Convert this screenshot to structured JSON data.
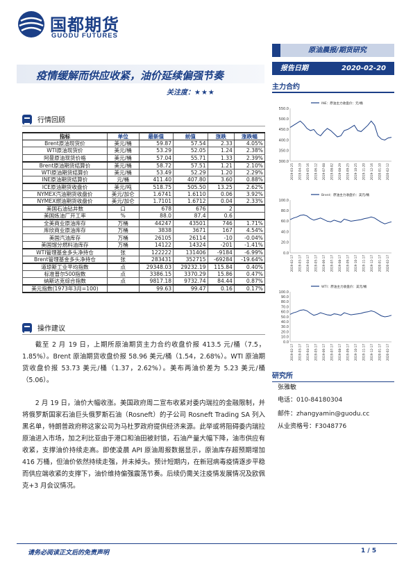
{
  "header": {
    "logo_cn": "国都期货",
    "logo_en": "GUODU FUTURES",
    "report_type": "原油晨报/期货研究",
    "date_label": "报告日期",
    "date_value": "2020-02-20",
    "title": "疫情缓解而供应收紧，油价延续偏强节奏",
    "attention_label": "关注度：",
    "attention_stars": "★★★",
    "section_main": "主力合约"
  },
  "sections": {
    "market": "行情回顾",
    "advice": "操作建议"
  },
  "table": {
    "headers": [
      "指标",
      "单位",
      "最新值",
      "前值",
      "涨跌",
      "涨跌幅"
    ],
    "rows": [
      [
        "Brent原油现货价",
        "美元/桶",
        "59.87",
        "57.54",
        "2.33",
        "4.05%"
      ],
      [
        "WTI原油现货价",
        "美元/桶",
        "53.29",
        "52.05",
        "1.24",
        "2.38%"
      ],
      [
        "阿曼原油现货价格",
        "美元/桶",
        "57.04",
        "55.71",
        "1.33",
        "2.39%"
      ],
      [
        "Brent原油期货结算价",
        "美元/桶",
        "58.72",
        "57.51",
        "1.21",
        "2.10%"
      ],
      [
        "WTI原油期货结算价",
        "美元/桶",
        "53.49",
        "52.29",
        "1.20",
        "2.29%"
      ],
      [
        "INE原油期货结算价",
        "元/桶",
        "411.40",
        "407.80",
        "3.60",
        "0.88%"
      ],
      [
        "ICE原油期货收盘价",
        "美元/吨",
        "518.75",
        "505.50",
        "13.25",
        "2.62%"
      ],
      [
        "NYMEX汽油期货收盘价",
        "美元/加仑",
        "1.6741",
        "1.6110",
        "0.06",
        "3.92%"
      ],
      [
        "NYMEX燃油期货收盘价",
        "美元/加仑",
        "1.7101",
        "1.6712",
        "0.04",
        "2.33%"
      ],
      [
        "美国石油钻井数",
        "口",
        "678",
        "676",
        "2",
        ""
      ],
      [
        "美国炼油厂开工率",
        "%",
        "88.0",
        "87.4",
        "0.6",
        ""
      ],
      [
        "全美商业原油库存",
        "万桶",
        "44247",
        "43501",
        "746",
        "1.71%"
      ],
      [
        "库欣商业原油库存",
        "万桶",
        "3838",
        "3671",
        "167",
        "4.54%"
      ],
      [
        "美国汽油库存",
        "万桶",
        "26105",
        "26114",
        "-10",
        "-0.04%"
      ],
      [
        "美国馏分燃料油库存",
        "万桶",
        "14122",
        "14324",
        "-201",
        "-1.41%"
      ],
      [
        "WTI管理基金多头净持仓",
        "张",
        "122222",
        "131406",
        "-9184",
        "-6.99%"
      ],
      [
        "Brent管理基金多头净持仓",
        "张",
        "283431",
        "352715",
        "-69284",
        "-19.64%"
      ],
      [
        "道琼斯工业平均指数",
        "点",
        "29348.03",
        "29232.19",
        "115.84",
        "0.40%"
      ],
      [
        "标准普尔500指数",
        "点",
        "3386.15",
        "3370.29",
        "15.86",
        "0.47%"
      ],
      [
        "纳斯达克综合指数",
        "点",
        "9817.18",
        "9732.74",
        "84.44",
        "0.87%"
      ],
      [
        "美元指数(1973年3月=100)",
        "",
        "99.63",
        "99.47",
        "0.16",
        "0.17%"
      ]
    ]
  },
  "paragraphs": [
    "截至 2 月 19 日，上期所原油期货主力合约收盘价报 413.5 元/桶（7.5，1.85%）。Brent 原油期货收盘价报 58.96 美元/桶（1.54，2.68%）。WTI 原油期货收盘价报 53.73 美元/桶（1.37，2.62%）。美布两油价差为 5.23 美元/桶（5.06）。",
    "2 月 19 日，油价大幅收涨。美国政府周二宣布收紧对委内瑞拉的金融限制，并将俄罗斯国家石油巨头俄罗斯石油（Rosneft）的子公司 Rosneft Trading SA 列入黑名单，特朗普政府称这家公司为马杜罗政府提供经济来源。此举或将阻碍委内瑞拉原油进入市场，加之利比亚由于港口和油田被封锁，石油产量大幅下降，油市供应有收紧，支撑油价持续走高。即使凌晨 API 原油周报数据显示，原油库存超预期增加 416 万桶，但油价依然持续走强，并未掉头。预计短期内，在新冠病毒疫情逐步平稳而供应端收紧的支撑下，油价维持偏强震荡节奏。后续仍需关注疫情发展情况及欧佩克+3 月会议情况。"
  ],
  "charts": [
    {
      "legend": "INE：原油主力收盘价：元/桶",
      "ylim": [
        300,
        550
      ],
      "yticks": [
        "550.0",
        "500.0",
        "450.0",
        "400.0",
        "350.0",
        "300.0"
      ],
      "xticks": [
        "2019-03-25",
        "2019-04-19",
        "2019-05-16",
        "2019-06-12",
        "2019-07-08",
        "2019-08-02",
        "2019-08-29",
        "2019-09-25",
        "2019-10-25",
        "2019-11-20",
        "2019-12-16",
        "2020-01-10",
        "2020-02-12"
      ],
      "values": [
        460,
        470,
        480,
        490,
        475,
        455,
        445,
        450,
        430,
        420,
        440,
        455,
        445,
        430,
        415,
        420,
        445,
        450,
        460,
        470,
        445,
        440,
        455,
        470,
        490,
        470,
        420,
        405,
        400,
        410,
        413
      ]
    },
    {
      "legend": "Brent：原油主力收盘价：美元/桶",
      "ylim": [
        0,
        100
      ],
      "yticks": [
        "100.0",
        "80.0",
        "60.0",
        "40.0",
        "20.0",
        "0.0"
      ],
      "xticks": [
        "2019-02-17",
        "2019-03-17",
        "2019-04-17",
        "2019-05-17",
        "2019-06-17",
        "2019-07-17",
        "2019-08-17",
        "2019-09-17",
        "2019-10-17",
        "2019-11-17",
        "2019-12-17",
        "2020-01-17",
        "2020-02-17"
      ],
      "values": [
        63,
        66,
        68,
        71,
        72,
        70,
        65,
        62,
        64,
        66,
        63,
        60,
        59,
        62,
        60,
        58,
        64,
        62,
        60,
        61,
        62,
        63,
        65,
        66,
        68,
        66,
        62,
        58,
        55,
        57,
        59
      ]
    },
    {
      "legend": "WTI：原油主力收盘价：美元/桶",
      "ylim": [
        0,
        100
      ],
      "yticks": [
        "100.0",
        "90.0",
        "80.0",
        "70.0",
        "60.0",
        "50.0",
        "40.0",
        "30.0",
        "20.0",
        "10.0",
        "0.0"
      ],
      "xticks": [
        "2019-02-17",
        "2019-03-17",
        "2019-04-17",
        "2019-05-17",
        "2019-06-17",
        "2019-07-17",
        "2019-08-17",
        "2019-09-17",
        "2019-10-17",
        "2019-11-17",
        "2019-12-17",
        "2020-01-17",
        "2020-02-17"
      ],
      "values": [
        55,
        58,
        60,
        63,
        64,
        62,
        57,
        53,
        55,
        58,
        56,
        54,
        53,
        56,
        55,
        53,
        58,
        56,
        54,
        55,
        56,
        57,
        59,
        60,
        62,
        60,
        56,
        52,
        50,
        51,
        53
      ]
    }
  ],
  "researcher": {
    "heading": "研究所",
    "name": "张雅敏",
    "phone": "电话：010-84180304",
    "email": "邮件：zhangyamin@guodu.cc",
    "license": "从业资格号：F3048776"
  },
  "footer": {
    "disclaimer": "请务必阅读正文后的免责声明",
    "page": "1 / 5"
  },
  "colors": {
    "brand": "#1b3f87",
    "chart_line": "#1b3f87"
  }
}
